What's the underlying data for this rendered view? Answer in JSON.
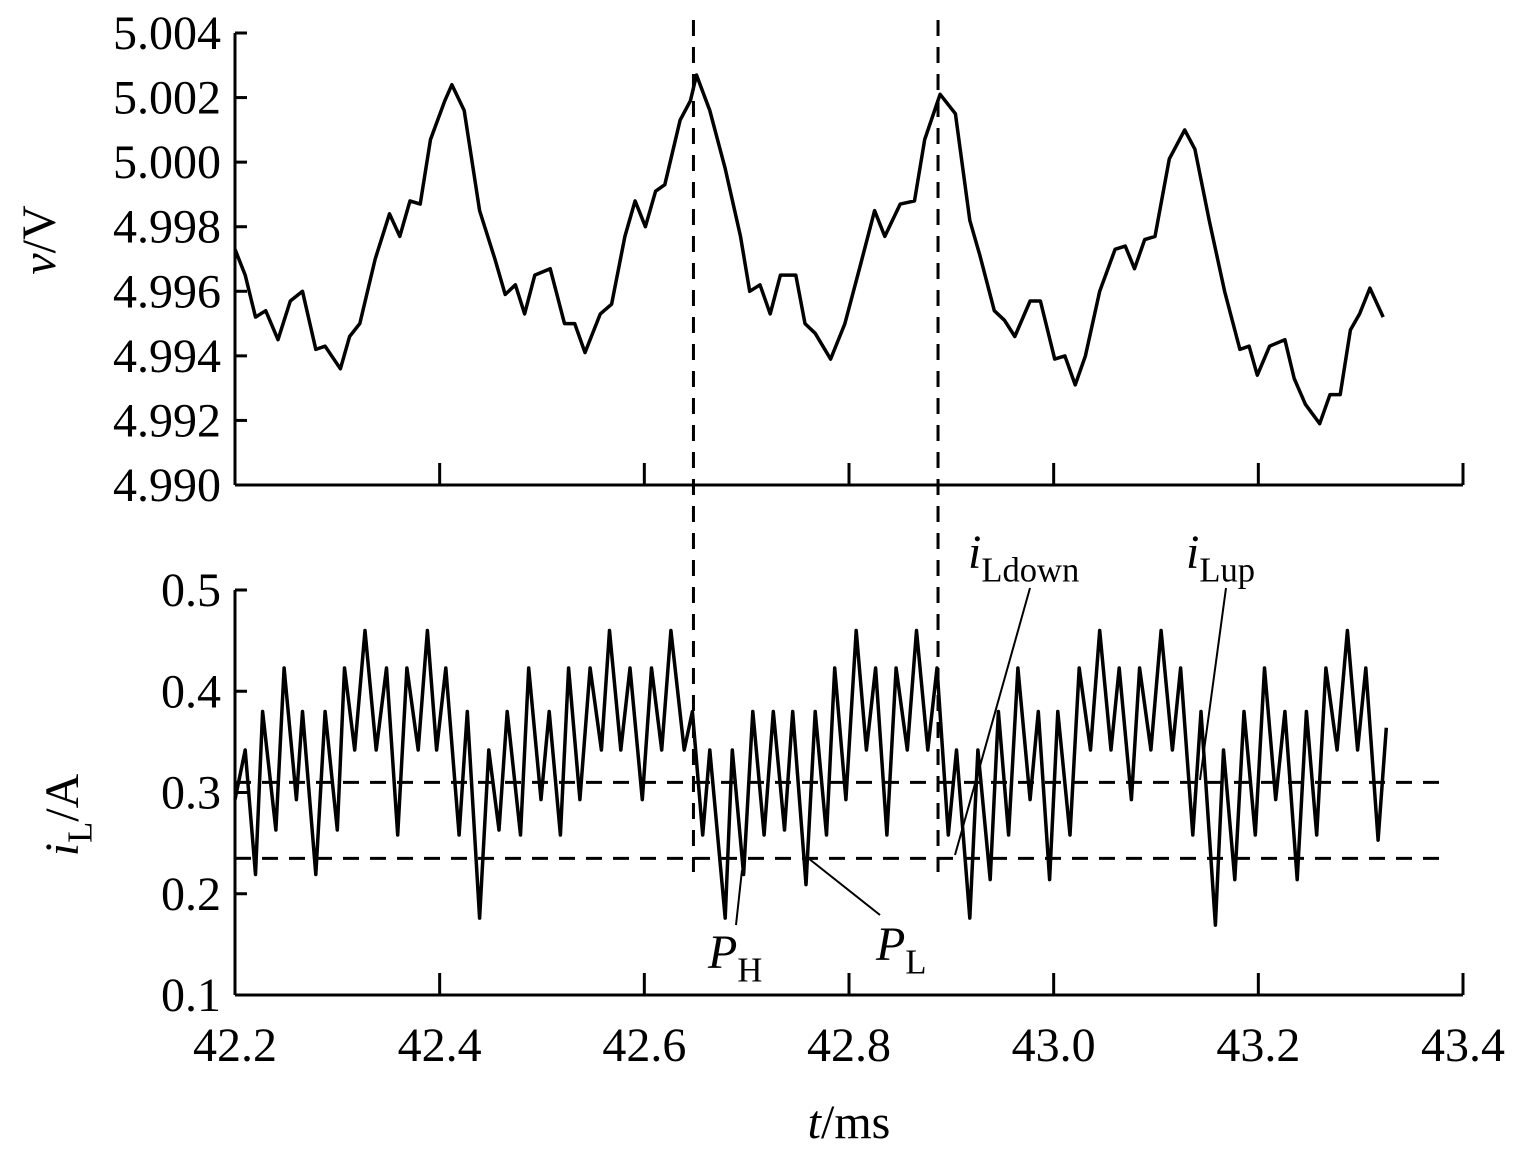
{
  "chart_data": [
    {
      "type": "line",
      "ylabel": [
        {
          "text": "v",
          "style": "italic"
        },
        {
          "text": "/V"
        }
      ],
      "xlim": [
        42.2,
        43.4
      ],
      "xticks": [
        42.2,
        42.4,
        42.6,
        42.8,
        43,
        43.2,
        43.4
      ],
      "ylim": [
        4.99,
        5.004
      ],
      "yticks": [
        {
          "value": 4.99,
          "label": "4.990"
        },
        4.992,
        4.994,
        4.996,
        4.998,
        {
          "value": 5,
          "label": "5.000"
        },
        5.002,
        5.004
      ],
      "vlines": [
        42.648,
        42.887
      ],
      "x": [
        42.2,
        42.21,
        42.22,
        42.23,
        42.242,
        42.254,
        42.266,
        42.279,
        42.288,
        42.303,
        42.312,
        42.322,
        42.337,
        42.351,
        42.361,
        42.371,
        42.381,
        42.391,
        42.405,
        42.412,
        42.424,
        42.439,
        42.454,
        42.464,
        42.474,
        42.483,
        42.493,
        42.508,
        42.522,
        42.532,
        42.542,
        42.557,
        42.568,
        42.581,
        42.591,
        42.601,
        42.611,
        42.62,
        42.635,
        42.645,
        42.651,
        42.664,
        42.679,
        42.694,
        42.703,
        42.713,
        42.723,
        42.733,
        42.748,
        42.757,
        42.767,
        42.782,
        42.796,
        42.811,
        42.825,
        42.835,
        42.85,
        42.864,
        42.874,
        42.889,
        42.904,
        42.918,
        42.928,
        42.942,
        42.952,
        42.962,
        42.977,
        42.987,
        43.001,
        43.011,
        43.021,
        43.031,
        43.045,
        43.06,
        43.07,
        43.079,
        43.089,
        43.099,
        43.113,
        43.128,
        43.138,
        43.152,
        43.167,
        43.182,
        43.191,
        43.199,
        43.211,
        43.226,
        43.235,
        43.246,
        43.26,
        43.27,
        43.28,
        43.29,
        43.299,
        43.309,
        43.322
      ],
      "series": [
        {
          "color": "#000000",
          "values": [
            4.9973,
            4.9965,
            4.9952,
            4.9954,
            4.9945,
            4.9957,
            4.996,
            4.9942,
            4.9943,
            4.9936,
            4.9946,
            4.995,
            4.997,
            4.9984,
            4.9977,
            4.9988,
            4.9987,
            5.0007,
            5.0019,
            5.0024,
            5.0016,
            4.9985,
            4.997,
            4.9959,
            4.9962,
            4.9953,
            4.9965,
            4.9967,
            4.995,
            4.995,
            4.9941,
            4.9953,
            4.9956,
            4.9977,
            4.9988,
            4.998,
            4.9991,
            4.9993,
            5.0013,
            5.0019,
            5.0027,
            5.0016,
            4.9998,
            4.9977,
            4.996,
            4.9962,
            4.9953,
            4.9965,
            4.9965,
            4.995,
            4.9947,
            4.9939,
            4.995,
            4.9968,
            4.9985,
            4.9977,
            4.9987,
            4.9988,
            5.0007,
            5.0021,
            5.0015,
            4.9982,
            4.9971,
            4.9954,
            4.9951,
            4.9946,
            4.9957,
            4.9957,
            4.9939,
            4.994,
            4.9931,
            4.994,
            4.996,
            4.9973,
            4.9974,
            4.9967,
            4.9976,
            4.9977,
            5.0001,
            5.001,
            5.0004,
            4.9982,
            4.996,
            4.9942,
            4.9943,
            4.9934,
            4.9943,
            4.9945,
            4.9933,
            4.9925,
            4.9919,
            4.9928,
            4.9928,
            4.9948,
            4.9953,
            4.9961,
            4.9952
          ]
        }
      ]
    },
    {
      "type": "line",
      "ylabel": [
        {
          "text": "i",
          "style": "italic"
        },
        {
          "text": "L",
          "style": "sub"
        },
        {
          "text": "/A"
        }
      ],
      "xlabel": [
        {
          "text": "t",
          "style": "italic"
        },
        {
          "text": "/ms"
        }
      ],
      "xlim": [
        42.2,
        43.4
      ],
      "xticks": [
        42.2,
        42.4,
        42.6,
        42.8,
        {
          "value": 43,
          "label": "43.0"
        },
        43.2,
        43.4
      ],
      "ylim": [
        0.1,
        0.5
      ],
      "yticks": [
        0.1,
        0.2,
        0.3,
        0.4,
        0.5
      ],
      "hlines": [
        0.31,
        0.235
      ],
      "annotations": [
        [
          {
            "text": "i",
            "style": "italic"
          },
          {
            "text": "Ldown",
            "style": "sub"
          }
        ],
        [
          {
            "text": "i",
            "style": "italic"
          },
          {
            "text": "Lup",
            "style": "sub"
          }
        ],
        [
          {
            "text": "P",
            "style": "italic"
          },
          {
            "text": "H",
            "style": "sub"
          }
        ],
        [
          {
            "text": "P",
            "style": "italic"
          },
          {
            "text": "L",
            "style": "sub"
          }
        ]
      ],
      "x": [
        42.2,
        42.21,
        42.22,
        42.227,
        42.24,
        42.248,
        42.26,
        42.266,
        42.279,
        42.288,
        42.3,
        42.307,
        42.317,
        42.327,
        42.338,
        42.348,
        42.359,
        42.368,
        42.379,
        42.388,
        42.397,
        42.406,
        42.419,
        42.427,
        42.439,
        42.448,
        42.458,
        42.466,
        42.479,
        42.487,
        42.499,
        42.507,
        42.518,
        42.526,
        42.537,
        42.547,
        42.558,
        42.566,
        42.577,
        42.586,
        42.598,
        42.607,
        42.617,
        42.626,
        42.639,
        42.647,
        42.657,
        42.664,
        42.679,
        42.686,
        42.697,
        42.706,
        42.717,
        42.726,
        42.737,
        42.745,
        42.758,
        42.767,
        42.778,
        42.786,
        42.797,
        42.807,
        42.817,
        42.826,
        42.837,
        42.846,
        42.857,
        42.866,
        42.877,
        42.886,
        42.897,
        42.905,
        42.918,
        42.926,
        42.938,
        42.946,
        42.956,
        42.965,
        42.977,
        42.985,
        42.996,
        43.004,
        43.016,
        43.025,
        43.036,
        43.045,
        43.056,
        43.064,
        43.076,
        43.084,
        43.095,
        43.105,
        43.116,
        43.124,
        43.136,
        43.144,
        43.158,
        43.166,
        43.177,
        43.186,
        43.197,
        43.206,
        43.217,
        43.226,
        43.238,
        43.247,
        43.257,
        43.266,
        43.277,
        43.287,
        43.297,
        43.305,
        43.317,
        43.325
      ],
      "series": [
        {
          "color": "#000000",
          "values": [
            0.293,
            0.342,
            0.219,
            0.38,
            0.263,
            0.423,
            0.293,
            0.38,
            0.219,
            0.38,
            0.263,
            0.423,
            0.342,
            0.46,
            0.342,
            0.423,
            0.258,
            0.423,
            0.342,
            0.46,
            0.342,
            0.423,
            0.258,
            0.38,
            0.176,
            0.342,
            0.263,
            0.38,
            0.258,
            0.423,
            0.293,
            0.38,
            0.258,
            0.423,
            0.293,
            0.423,
            0.342,
            0.46,
            0.342,
            0.423,
            0.293,
            0.423,
            0.342,
            0.46,
            0.342,
            0.38,
            0.258,
            0.342,
            0.176,
            0.342,
            0.219,
            0.38,
            0.258,
            0.38,
            0.263,
            0.38,
            0.209,
            0.38,
            0.258,
            0.423,
            0.293,
            0.46,
            0.342,
            0.423,
            0.258,
            0.423,
            0.342,
            0.46,
            0.342,
            0.423,
            0.258,
            0.342,
            0.176,
            0.342,
            0.214,
            0.38,
            0.258,
            0.423,
            0.293,
            0.38,
            0.214,
            0.38,
            0.258,
            0.423,
            0.342,
            0.46,
            0.342,
            0.423,
            0.293,
            0.423,
            0.342,
            0.46,
            0.342,
            0.423,
            0.258,
            0.38,
            0.169,
            0.342,
            0.214,
            0.38,
            0.258,
            0.423,
            0.293,
            0.38,
            0.214,
            0.38,
            0.258,
            0.423,
            0.342,
            0.46,
            0.342,
            0.423,
            0.253,
            0.364
          ]
        }
      ]
    }
  ]
}
